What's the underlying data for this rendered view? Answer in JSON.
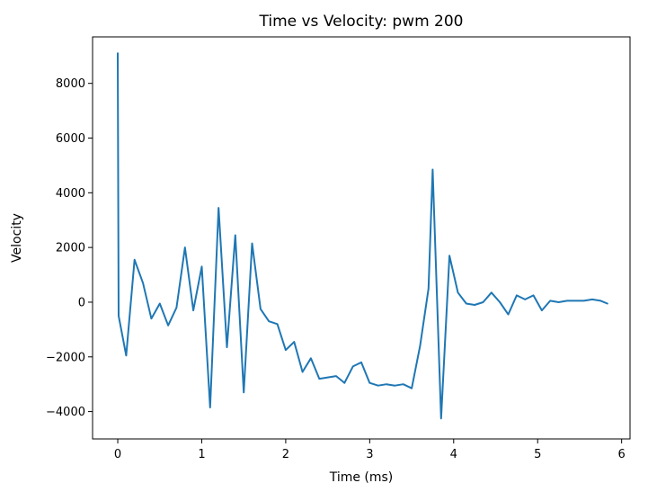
{
  "chart_data": {
    "type": "line",
    "title": "Time vs Velocity: pwm 200",
    "xlabel": "Time (ms)",
    "ylabel": "Velocity",
    "xlim": [
      -0.3,
      6.1
    ],
    "ylim": [
      -5000,
      9700
    ],
    "x_ticks": [
      0,
      1,
      2,
      3,
      4,
      5,
      6
    ],
    "x_tick_labels": [
      "0",
      "1",
      "2",
      "3",
      "4",
      "5",
      "6"
    ],
    "y_ticks": [
      -4000,
      -2000,
      0,
      2000,
      4000,
      6000,
      8000
    ],
    "y_tick_labels": [
      "−4000",
      "−2000",
      "0",
      "2000",
      "4000",
      "6000",
      "8000"
    ],
    "grid": false,
    "series": [
      {
        "name": "velocity",
        "color": "#1f77b4",
        "x": [
          0,
          0.01,
          0.1,
          0.2,
          0.3,
          0.4,
          0.5,
          0.6,
          0.7,
          0.8,
          0.9,
          1.0,
          1.1,
          1.2,
          1.3,
          1.4,
          1.5,
          1.6,
          1.7,
          1.8,
          1.9,
          2.0,
          2.1,
          2.2,
          2.3,
          2.4,
          2.5,
          2.6,
          2.7,
          2.8,
          2.9,
          3.0,
          3.1,
          3.2,
          3.3,
          3.4,
          3.5,
          3.6,
          3.7,
          3.75,
          3.85,
          3.95,
          4.05,
          4.15,
          4.25,
          4.35,
          4.45,
          4.55,
          4.65,
          4.75,
          4.85,
          4.95,
          5.05,
          5.15,
          5.25,
          5.35,
          5.45,
          5.55,
          5.65,
          5.75,
          5.83
        ],
        "y": [
          9100,
          -500,
          -1950,
          1550,
          700,
          -600,
          -50,
          -850,
          -200,
          2000,
          -300,
          1300,
          -3850,
          3450,
          -1650,
          2450,
          -3300,
          2150,
          -250,
          -700,
          -800,
          -1750,
          -1450,
          -2550,
          -2050,
          -2800,
          -2750,
          -2700,
          -2950,
          -2350,
          -2200,
          -2950,
          -3050,
          -3000,
          -3050,
          -3000,
          -3150,
          -1600,
          500,
          4850,
          -4250,
          1700,
          350,
          -50,
          -100,
          0,
          350,
          0,
          -450,
          250,
          100,
          250,
          -300,
          50,
          0,
          50,
          50,
          50,
          100,
          50,
          -50
        ]
      }
    ]
  }
}
